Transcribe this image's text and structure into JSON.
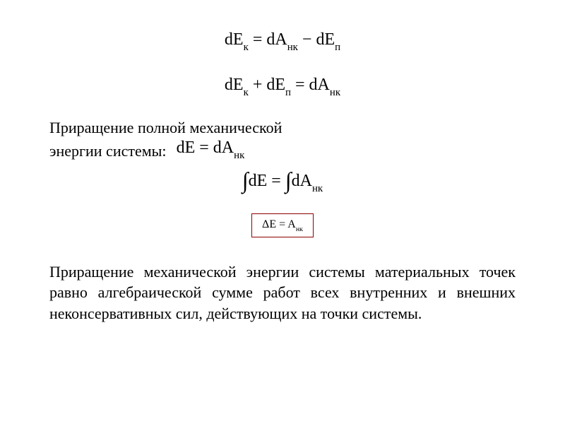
{
  "eq1": {
    "lhs_var": "dE",
    "lhs_sub": "к",
    "t1_var": "dA",
    "t1_sub": "нк",
    "op": "−",
    "t2_var": "dE",
    "t2_sub": "п"
  },
  "eq2": {
    "a_var": "dE",
    "a_sub": "к",
    "op1": "+",
    "b_var": "dE",
    "b_sub": "п",
    "rhs_var": "dA",
    "rhs_sub": "нк"
  },
  "label": {
    "line1": "Приращение полной механической",
    "line2": "энергии системы:"
  },
  "eq3": {
    "lhs": "dE",
    "rhs_var": "dA",
    "rhs_sub": "нк"
  },
  "eq4": {
    "int_left": "∫",
    "a": "dE",
    "int_right": "∫",
    "b_var": "dA",
    "b_sub": "нк"
  },
  "eq5": {
    "lhs": "ΔE",
    "rhs_var": "A",
    "rhs_sub": "нк",
    "border_color": "#8b0000"
  },
  "conclusion": "Приращение механической энергии системы материальных точек равно алгебраической сумме работ всех внутренних и внешних неконсервативных сил, действующих на точки системы.",
  "style": {
    "background": "#ffffff",
    "text_color": "#000000",
    "font_family": "Times New Roman",
    "eq_fontsize": 24,
    "body_fontsize": 22
  }
}
